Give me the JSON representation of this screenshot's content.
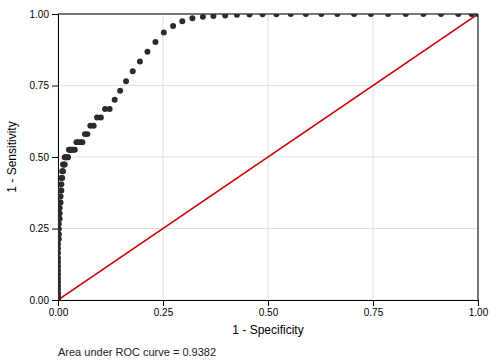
{
  "chart_data": {
    "type": "scatter",
    "xlabel": "1 - Specificity",
    "ylabel": "1 - Sensitivity",
    "annotation": "Area under ROC curve = 0.9382",
    "xlim": [
      0.0,
      1.0
    ],
    "ylim": [
      0.0,
      1.0
    ],
    "xticks": [
      {
        "value": 0.0,
        "label": "0.00"
      },
      0.25,
      {
        "value": 0.5,
        "label": "0.50"
      },
      0.75,
      {
        "value": 1.0,
        "label": "1.00"
      }
    ],
    "yticks": [
      {
        "value": 0.0,
        "label": "0.00"
      },
      0.25,
      {
        "value": 0.5,
        "label": "0.50"
      },
      0.75,
      {
        "value": 1.0,
        "label": "1.00"
      }
    ],
    "grid": true,
    "series": [
      {
        "type": "line",
        "color": "#cc0000",
        "line_style": "solid",
        "x": [
          0,
          1
        ],
        "values": [
          0,
          1
        ]
      },
      {
        "type": "scatter",
        "color": "#2b2b2b",
        "marker": "circle",
        "x": [
          0.0,
          0.0,
          0.0,
          0.0,
          0.0,
          0.0,
          0.0,
          0.0,
          0.0,
          0.0,
          0.0,
          0.0,
          0.0,
          0.0,
          0.0,
          0.0,
          0.002,
          0.002,
          0.002,
          0.002,
          0.002,
          0.004,
          0.004,
          0.004,
          0.004,
          0.006,
          0.006,
          0.006,
          0.008,
          0.008,
          0.008,
          0.01,
          0.01,
          0.012,
          0.012,
          0.014,
          0.016,
          0.016,
          0.018,
          0.02,
          0.022,
          0.024,
          0.026,
          0.028,
          0.03,
          0.033,
          0.036,
          0.04,
          0.044,
          0.048,
          0.053,
          0.058,
          0.064,
          0.07,
          0.077,
          0.085,
          0.093,
          0.102,
          0.112,
          0.123,
          0.135,
          0.148,
          0.162,
          0.178,
          0.195,
          0.213,
          0.232,
          0.252,
          0.274,
          0.296,
          0.32,
          0.345,
          0.37,
          0.398,
          0.426,
          0.456,
          0.487,
          0.52,
          0.554,
          0.59,
          0.627,
          0.665,
          0.705,
          0.745,
          0.786,
          0.828,
          0.87,
          0.912,
          0.953,
          0.985,
          1.0
        ],
        "values": [
          0.0,
          0.012,
          0.024,
          0.037,
          0.05,
          0.063,
          0.076,
          0.09,
          0.104,
          0.118,
          0.133,
          0.148,
          0.164,
          0.18,
          0.196,
          0.213,
          0.213,
          0.23,
          0.248,
          0.266,
          0.284,
          0.284,
          0.303,
          0.322,
          0.341,
          0.341,
          0.362,
          0.383,
          0.383,
          0.405,
          0.427,
          0.427,
          0.45,
          0.45,
          0.474,
          0.474,
          0.474,
          0.499,
          0.499,
          0.499,
          0.499,
          0.499,
          0.525,
          0.525,
          0.525,
          0.525,
          0.525,
          0.525,
          0.552,
          0.552,
          0.552,
          0.552,
          0.58,
          0.58,
          0.609,
          0.609,
          0.638,
          0.638,
          0.668,
          0.668,
          0.7,
          0.732,
          0.765,
          0.8,
          0.834,
          0.868,
          0.902,
          0.935,
          0.958,
          0.975,
          0.985,
          0.99,
          0.993,
          0.995,
          0.997,
          0.998,
          0.999,
          0.999,
          1.0,
          1.0,
          1.0,
          1.0,
          1.0,
          1.0,
          1.0,
          1.0,
          1.0,
          1.0,
          1.0,
          1.0,
          1.0
        ]
      }
    ]
  }
}
